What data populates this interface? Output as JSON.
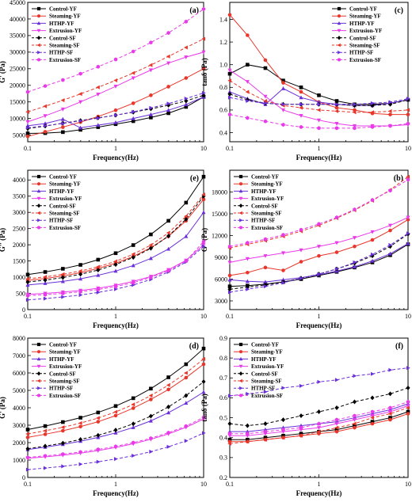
{
  "series_styles": [
    {
      "color": "#000000",
      "marker": "square",
      "dash": false
    },
    {
      "color": "#e8362a",
      "marker": "circle",
      "dash": false
    },
    {
      "color": "#6a2fd8",
      "marker": "triangle-up",
      "dash": false
    },
    {
      "color": "#e83ae8",
      "marker": "triangle-down",
      "dash": false
    },
    {
      "color": "#000000",
      "marker": "diamond",
      "dash": true
    },
    {
      "color": "#e8362a",
      "marker": "triangle-left",
      "dash": true
    },
    {
      "color": "#6a2fd8",
      "marker": "triangle-right",
      "dash": true
    },
    {
      "color": "#e83ae8",
      "marker": "hexagon",
      "dash": true
    }
  ],
  "chart_data": [
    {
      "type": "line",
      "panel": "(a)",
      "xscale": "log",
      "xlim": [
        0.1,
        10
      ],
      "xlabel": "Frequency(Hz)",
      "ylabel": "G' (Pa)",
      "ylim": [
        3000,
        45000
      ],
      "yticks": [
        5000,
        10000,
        15000,
        20000,
        25000,
        30000,
        35000,
        40000,
        45000
      ],
      "tick_labels": [
        "5000",
        "10000",
        "15000",
        "20000",
        "25000",
        "30000",
        "35000",
        "40000",
        "45000"
      ],
      "xticks": [
        0.1,
        1,
        10
      ],
      "xtick_labels": [
        "0.1",
        "1",
        "10"
      ],
      "legend_position": "top-left",
      "x": [
        0.1,
        0.158,
        0.251,
        0.398,
        0.631,
        1,
        1.585,
        2.512,
        3.981,
        6.31,
        10
      ],
      "series": [
        {
          "name": "Control-YF",
          "values": [
            5500,
            5600,
            5900,
            6600,
            7400,
            8300,
            9200,
            10300,
            11600,
            13500,
            16500
          ]
        },
        {
          "name": "Steaming-YF",
          "values": [
            4600,
            6000,
            7400,
            8900,
            10600,
            12500,
            14600,
            17000,
            19600,
            22200,
            25000
          ]
        },
        {
          "name": "HTHP-YF",
          "values": [
            7800,
            8500,
            9800,
            7200,
            8000,
            8800,
            10000,
            11200,
            12500,
            14200,
            16500
          ]
        },
        {
          "name": "Extrusion-YF",
          "values": [
            9000,
            10800,
            12800,
            15000,
            17300,
            19700,
            22200,
            24600,
            26700,
            28500,
            30000
          ]
        },
        {
          "name": "Control-SF",
          "values": [
            7000,
            7700,
            8600,
            9400,
            10200,
            11000,
            11900,
            12900,
            14000,
            15300,
            17000
          ]
        },
        {
          "name": "Steaming-SF",
          "values": [
            12000,
            13700,
            15500,
            17400,
            19400,
            21500,
            23700,
            26100,
            28700,
            31400,
            34000
          ]
        },
        {
          "name": "HTHP-SF",
          "values": [
            7200,
            7800,
            8500,
            9300,
            10100,
            11000,
            12000,
            13200,
            14500,
            16000,
            17700
          ]
        },
        {
          "name": "Extrusion-SF",
          "values": [
            18000,
            19800,
            21600,
            23500,
            25600,
            27800,
            30200,
            32900,
            35800,
            39200,
            43000
          ]
        }
      ]
    },
    {
      "type": "line",
      "panel": "(b)",
      "xscale": "log",
      "xlim": [
        0.1,
        10
      ],
      "xlabel": "Frequency(Hz)",
      "ylabel": "G'' (Pa)",
      "ylim": [
        1800,
        21000
      ],
      "yticks": [
        3000,
        6000,
        9000,
        12000,
        15000,
        18000
      ],
      "tick_labels": [
        "3000",
        "6000",
        "9000",
        "12000",
        "15000",
        "18000"
      ],
      "xticks": [
        0.1,
        1,
        10
      ],
      "xtick_labels": [
        "0.1",
        "1",
        "10"
      ],
      "legend_position": "top-left",
      "x": [
        0.1,
        0.158,
        0.251,
        0.398,
        0.631,
        1,
        1.585,
        2.512,
        3.981,
        6.31,
        10
      ],
      "series": [
        {
          "name": "Control-YF",
          "values": [
            5000,
            5100,
            5300,
            5600,
            6000,
            6500,
            7000,
            7600,
            8300,
            9300,
            10800
          ]
        },
        {
          "name": "Steaming-YF",
          "values": [
            6500,
            6900,
            7600,
            7200,
            8400,
            9200,
            9700,
            10500,
            11400,
            12700,
            14200
          ]
        },
        {
          "name": "HTHP-YF",
          "values": [
            5900,
            5700,
            5600,
            5900,
            6200,
            6600,
            7100,
            7700,
            8500,
            9500,
            10900
          ]
        },
        {
          "name": "Extrusion-YF",
          "values": [
            8300,
            8800,
            9200,
            9600,
            10000,
            10500,
            11000,
            11700,
            12500,
            13400,
            14500
          ]
        },
        {
          "name": "Control-SF",
          "values": [
            4600,
            4900,
            5200,
            5600,
            6100,
            6700,
            7400,
            8200,
            9200,
            10500,
            12200
          ]
        },
        {
          "name": "Steaming-SF",
          "values": [
            10300,
            10800,
            11300,
            11900,
            12600,
            13400,
            14400,
            15500,
            16800,
            18300,
            20100
          ]
        },
        {
          "name": "HTHP-SF",
          "values": [
            4200,
            4600,
            5000,
            5500,
            6100,
            6700,
            7400,
            8300,
            9400,
            10700,
            12300
          ]
        },
        {
          "name": "Extrusion-SF",
          "values": [
            10500,
            11000,
            11500,
            12100,
            12800,
            13600,
            14500,
            15600,
            16900,
            18200,
            19700
          ]
        }
      ]
    },
    {
      "type": "line",
      "panel": "(c)",
      "xscale": "log",
      "xlim": [
        0.1,
        10
      ],
      "xlabel": "Frequency(Hz)",
      "ylabel": "tanδ (Pa)",
      "ylim": [
        0.32,
        1.55
      ],
      "yticks": [
        0.4,
        0.6,
        0.8,
        1.0,
        1.2,
        1.4
      ],
      "tick_labels": [
        "0.4",
        "0.6",
        "0.8",
        "1.0",
        "1.2",
        "1.4"
      ],
      "xticks": [
        0.1,
        1,
        10
      ],
      "xtick_labels": [
        "0.1",
        "1",
        "10"
      ],
      "legend_position": "top-right",
      "x": [
        0.1,
        0.158,
        0.251,
        0.398,
        0.631,
        1,
        1.585,
        2.512,
        3.981,
        6.31,
        10
      ],
      "series": [
        {
          "name": "Control-YF",
          "values": [
            0.92,
            1.0,
            0.97,
            0.86,
            0.8,
            0.73,
            0.68,
            0.65,
            0.65,
            0.66,
            0.69
          ]
        },
        {
          "name": "Steaming-YF",
          "values": [
            1.44,
            1.26,
            1.04,
            0.84,
            0.76,
            0.67,
            0.62,
            0.6,
            0.57,
            0.56,
            0.56
          ]
        },
        {
          "name": "HTHP-YF",
          "values": [
            0.76,
            0.7,
            0.65,
            0.79,
            0.71,
            0.67,
            0.65,
            0.64,
            0.64,
            0.66,
            0.69
          ]
        },
        {
          "name": "Extrusion-YF",
          "values": [
            0.95,
            0.85,
            0.72,
            0.6,
            0.55,
            0.51,
            0.48,
            0.46,
            0.46,
            0.46,
            0.47
          ]
        },
        {
          "name": "Control-SF",
          "values": [
            0.74,
            0.69,
            0.66,
            0.65,
            0.65,
            0.65,
            0.65,
            0.64,
            0.64,
            0.65,
            0.69
          ]
        },
        {
          "name": "Steaming-SF",
          "values": [
            0.86,
            0.76,
            0.68,
            0.64,
            0.62,
            0.6,
            0.59,
            0.58,
            0.58,
            0.59,
            0.6
          ]
        },
        {
          "name": "HTHP-SF",
          "values": [
            0.71,
            0.68,
            0.66,
            0.65,
            0.65,
            0.65,
            0.65,
            0.65,
            0.66,
            0.67,
            0.7
          ]
        },
        {
          "name": "Extrusion-SF",
          "values": [
            0.56,
            0.53,
            0.5,
            0.47,
            0.45,
            0.44,
            0.44,
            0.44,
            0.45,
            0.46,
            0.48
          ]
        }
      ]
    },
    {
      "type": "line",
      "panel": "(d)",
      "xscale": "log",
      "xlim": [
        0.1,
        10
      ],
      "xlabel": "Frequency(Hz)",
      "ylabel": "G' (Pa)",
      "ylim": [
        0,
        8000
      ],
      "yticks": [
        0,
        1000,
        2000,
        3000,
        4000,
        5000,
        6000,
        7000,
        8000
      ],
      "tick_labels": [
        "0",
        "1000",
        "2000",
        "3000",
        "4000",
        "5000",
        "6000",
        "7000",
        "8000"
      ],
      "xticks": [
        0.1,
        1,
        10
      ],
      "xtick_labels": [
        "0.1",
        "1",
        "10"
      ],
      "legend_position": "top-left",
      "x": [
        0.1,
        0.158,
        0.251,
        0.398,
        0.631,
        1,
        1.585,
        2.512,
        3.981,
        6.31,
        10
      ],
      "series": [
        {
          "name": "Control-YF",
          "values": [
            2750,
            2950,
            3180,
            3430,
            3730,
            4100,
            4550,
            5100,
            5750,
            6500,
            7400
          ]
        },
        {
          "name": "Steaming-YF",
          "values": [
            2300,
            2480,
            2680,
            2920,
            3200,
            3550,
            3980,
            4480,
            5050,
            5730,
            6500
          ]
        },
        {
          "name": "HTHP-YF",
          "values": [
            1600,
            1740,
            1900,
            2080,
            2300,
            2560,
            2870,
            3250,
            3720,
            4270,
            4900
          ]
        },
        {
          "name": "Extrusion-YF",
          "values": [
            1100,
            1180,
            1280,
            1400,
            1540,
            1720,
            1930,
            2190,
            2500,
            2880,
            3350
          ]
        },
        {
          "name": "Control-SF",
          "values": [
            1650,
            1800,
            1970,
            2180,
            2420,
            2720,
            3080,
            3520,
            4050,
            4700,
            5500
          ]
        },
        {
          "name": "Steaming-SF",
          "values": [
            2500,
            2680,
            2880,
            3120,
            3410,
            3760,
            4190,
            4700,
            5300,
            6000,
            6800
          ]
        },
        {
          "name": "HTHP-SF",
          "values": [
            450,
            540,
            640,
            760,
            900,
            1060,
            1250,
            1480,
            1760,
            2100,
            2550
          ]
        },
        {
          "name": "Extrusion-SF",
          "values": [
            1150,
            1240,
            1340,
            1460,
            1610,
            1780,
            2000,
            2250,
            2570,
            2950,
            3450
          ]
        }
      ]
    },
    {
      "type": "line",
      "panel": "(e)",
      "xscale": "log",
      "xlim": [
        0.1,
        10
      ],
      "xlabel": "Frequency(Hz)",
      "ylabel": "G'' (Pa)",
      "ylim": [
        0,
        4300
      ],
      "yticks": [
        0,
        500,
        1000,
        1500,
        2000,
        2500,
        3000,
        3500,
        4000
      ],
      "tick_labels": [
        "0",
        "500",
        "1000",
        "1500",
        "2000",
        "2500",
        "3000",
        "3500",
        "4000"
      ],
      "xticks": [
        0.1,
        1,
        10
      ],
      "xtick_labels": [
        "0.1",
        "1",
        "10"
      ],
      "legend_position": "top-left",
      "x": [
        0.1,
        0.158,
        0.251,
        0.398,
        0.631,
        1,
        1.585,
        2.512,
        3.981,
        6.31,
        10
      ],
      "series": [
        {
          "name": "Control-YF",
          "values": [
            1080,
            1160,
            1260,
            1380,
            1540,
            1740,
            1990,
            2320,
            2740,
            3300,
            4100
          ]
        },
        {
          "name": "Steaming-YF",
          "values": [
            900,
            960,
            1040,
            1140,
            1270,
            1430,
            1640,
            1910,
            2260,
            2740,
            3400
          ]
        },
        {
          "name": "HTHP-YF",
          "values": [
            760,
            810,
            870,
            950,
            1060,
            1190,
            1360,
            1580,
            1870,
            2260,
            3000
          ]
        },
        {
          "name": "Extrusion-YF",
          "values": [
            470,
            500,
            540,
            590,
            660,
            750,
            870,
            1020,
            1230,
            1520,
            2000
          ]
        },
        {
          "name": "Control-SF",
          "values": [
            850,
            910,
            990,
            1090,
            1220,
            1390,
            1610,
            1890,
            2270,
            2790,
            3500
          ]
        },
        {
          "name": "Steaming-SF",
          "values": [
            950,
            1010,
            1090,
            1190,
            1320,
            1490,
            1710,
            1990,
            2370,
            2880,
            3550
          ]
        },
        {
          "name": "HTHP-SF",
          "values": [
            300,
            340,
            390,
            450,
            530,
            630,
            760,
            930,
            1160,
            1470,
            1950
          ]
        },
        {
          "name": "Extrusion-SF",
          "values": [
            430,
            460,
            500,
            550,
            620,
            710,
            830,
            990,
            1200,
            1500,
            2100
          ]
        }
      ]
    },
    {
      "type": "line",
      "panel": "(f)",
      "xscale": "log",
      "xlim": [
        0.1,
        10
      ],
      "xlabel": "Frequency(Hz)",
      "ylabel": "tanδ (Pa)",
      "ylim": [
        0.2,
        0.9
      ],
      "yticks": [
        0.2,
        0.3,
        0.4,
        0.5,
        0.6,
        0.7,
        0.8,
        0.9
      ],
      "tick_labels": [
        "0.2",
        "0.3",
        "0.4",
        "0.5",
        "0.6",
        "0.7",
        "0.8",
        "0.9"
      ],
      "xticks": [
        0.1,
        1,
        10
      ],
      "xtick_labels": [
        "0.1",
        "1",
        "10"
      ],
      "legend_position": "top-left",
      "x": [
        0.1,
        0.158,
        0.251,
        0.398,
        0.631,
        1,
        1.585,
        2.512,
        3.981,
        6.31,
        10
      ],
      "series": [
        {
          "name": "Control-YF",
          "values": [
            0.39,
            0.39,
            0.4,
            0.41,
            0.42,
            0.43,
            0.44,
            0.46,
            0.48,
            0.5,
            0.53
          ]
        },
        {
          "name": "Steaming-YF",
          "values": [
            0.38,
            0.38,
            0.39,
            0.4,
            0.41,
            0.42,
            0.43,
            0.45,
            0.47,
            0.49,
            0.52
          ]
        },
        {
          "name": "HTHP-YF",
          "values": [
            0.43,
            0.43,
            0.44,
            0.45,
            0.46,
            0.47,
            0.48,
            0.5,
            0.52,
            0.54,
            0.57
          ]
        },
        {
          "name": "Extrusion-YF",
          "values": [
            0.41,
            0.41,
            0.42,
            0.43,
            0.44,
            0.45,
            0.47,
            0.49,
            0.51,
            0.53,
            0.56
          ]
        },
        {
          "name": "Control-SF",
          "values": [
            0.47,
            0.46,
            0.47,
            0.49,
            0.51,
            0.53,
            0.55,
            0.58,
            0.6,
            0.62,
            0.65
          ]
        },
        {
          "name": "Steaming-SF",
          "values": [
            0.37,
            0.38,
            0.39,
            0.4,
            0.41,
            0.43,
            0.45,
            0.47,
            0.5,
            0.52,
            0.55
          ]
        },
        {
          "name": "HTHP-SF",
          "values": [
            0.61,
            0.62,
            0.63,
            0.65,
            0.66,
            0.68,
            0.69,
            0.71,
            0.72,
            0.74,
            0.75
          ]
        },
        {
          "name": "Extrusion-SF",
          "values": [
            0.42,
            0.42,
            0.43,
            0.44,
            0.45,
            0.47,
            0.49,
            0.51,
            0.53,
            0.55,
            0.58
          ]
        }
      ]
    }
  ]
}
